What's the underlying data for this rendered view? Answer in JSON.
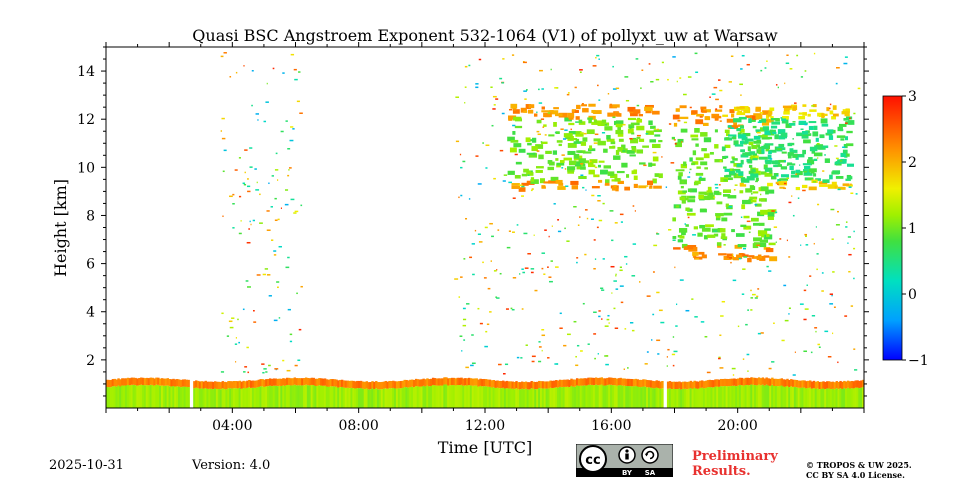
{
  "chart_data": {
    "type": "heatmap",
    "title": "Quasi BSC Angstroem Exponent 532-1064 (V1) of pollyxt_uw at Warsaw",
    "xlabel": "Time [UTC]",
    "ylabel": "Height [km]",
    "xlim": [
      0,
      24
    ],
    "ylim": [
      0,
      15
    ],
    "x_ticks": [
      4,
      8,
      12,
      16,
      20
    ],
    "x_tick_labels": [
      "04:00",
      "08:00",
      "12:00",
      "16:00",
      "20:00"
    ],
    "y_ticks": [
      2,
      4,
      6,
      8,
      10,
      12,
      14
    ],
    "y_tick_labels": [
      "2",
      "4",
      "6",
      "8",
      "10",
      "12",
      "14"
    ],
    "colorbar": {
      "min": -1,
      "max": 3,
      "ticks": [
        -1,
        0,
        1,
        2,
        3
      ],
      "tick_labels": [
        "−1",
        "0",
        "1",
        "2",
        "3"
      ],
      "colormap": "jet"
    },
    "features": [
      {
        "name": "boundary layer",
        "t_start": 0,
        "t_end": 24,
        "h_bottom": 0,
        "h_top": 1.1,
        "value": 1.2
      },
      {
        "name": "boundary layer top",
        "t_start": 0,
        "t_end": 24,
        "h_bottom": 0.9,
        "h_top": 1.2,
        "value": 2.3
      },
      {
        "name": "cirrus morning",
        "t_start": 12.7,
        "t_end": 17.5,
        "h_bottom": 9,
        "h_top": 12.5,
        "value": 1.0
      },
      {
        "name": "cirrus evening",
        "t_start": 17.9,
        "t_end": 21,
        "h_bottom": 6,
        "h_top": 12.5,
        "value": 1.0
      },
      {
        "name": "cirrus late",
        "t_start": 19.5,
        "t_end": 23.5,
        "h_bottom": 9,
        "h_top": 12.5,
        "value": 0.6
      }
    ],
    "data_gaps": [
      {
        "t": 2.6,
        "width": 0.15
      },
      {
        "t": 17.6,
        "width": 0.12
      }
    ]
  },
  "footer": {
    "date": "2025-10-31",
    "version": "Version: 4.0",
    "preliminary_line1": "Preliminary",
    "preliminary_line2": "Results.",
    "copyright_line1": "© TROPOS & UW 2025.",
    "copyright_line2": "CC BY SA 4.0 License.",
    "license_cc": "cc",
    "license_by": "BY",
    "license_sa": "SA"
  }
}
